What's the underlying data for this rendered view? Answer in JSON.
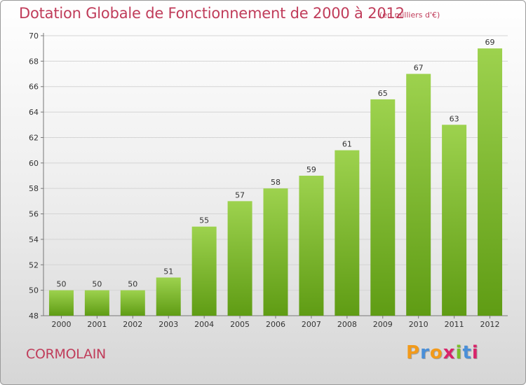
{
  "title": "Dotation Globale de Fonctionnement de 2000 à 2012",
  "subtitle": "(en milliers d'€)",
  "city": "CORMOLAIN",
  "logo": {
    "letters": [
      "P",
      "r",
      "o",
      "x",
      "i",
      "t",
      "i"
    ],
    "colors": [
      "#f29a1a",
      "#4a8fd8",
      "#f29a1a",
      "#d8246a",
      "#7bbf2a",
      "#4a8fd8",
      "#d8246a"
    ]
  },
  "chart_data": {
    "type": "bar",
    "title": "Dotation Globale de Fonctionnement de 2000 à 2012",
    "subtitle": "(en milliers d'€)",
    "categories": [
      "2000",
      "2001",
      "2002",
      "2003",
      "2004",
      "2005",
      "2006",
      "2007",
      "2008",
      "2009",
      "2010",
      "2011",
      "2012"
    ],
    "values": [
      50,
      50,
      50,
      51,
      55,
      57,
      58,
      59,
      61,
      65,
      67,
      63,
      69
    ],
    "ylim": [
      48,
      70
    ],
    "yticks": [
      48,
      50,
      52,
      54,
      56,
      58,
      60,
      62,
      64,
      66,
      68,
      70
    ],
    "grid": true,
    "bar_color_top": "#9dd24e",
    "bar_color_bottom": "#5f9c14"
  }
}
